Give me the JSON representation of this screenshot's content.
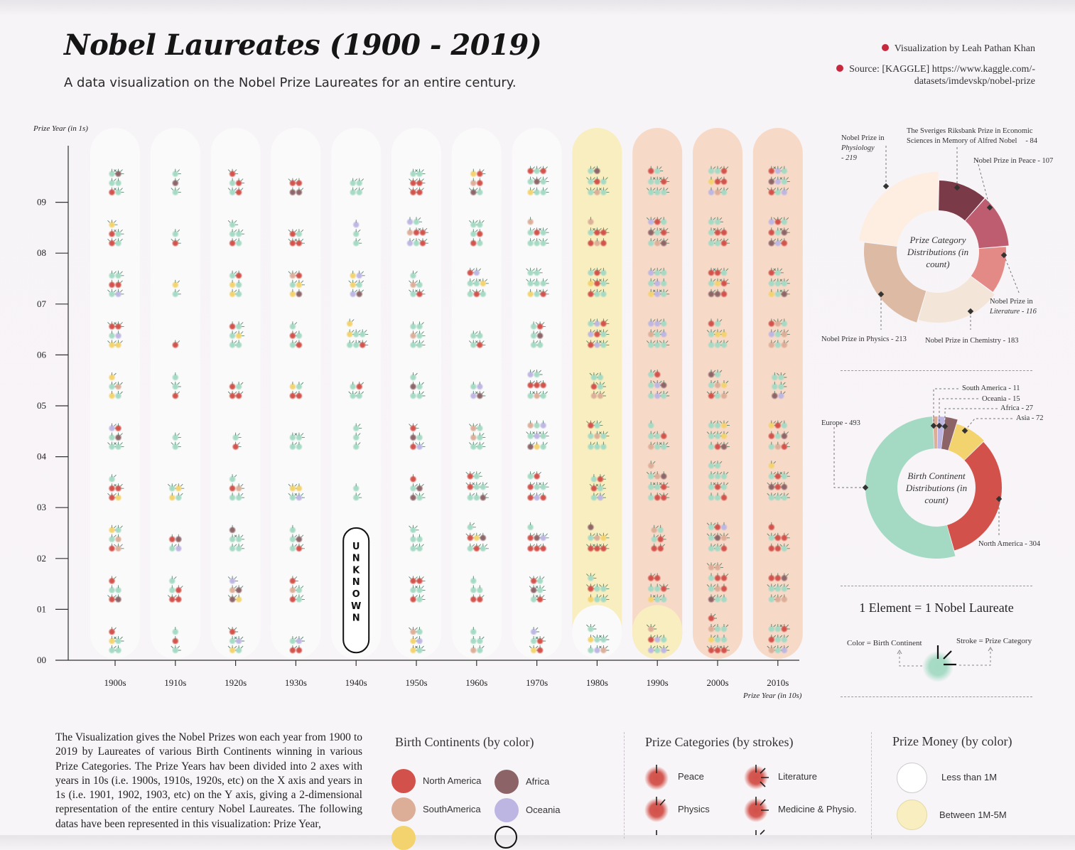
{
  "header": {
    "title": "Nobel Laureates (1900 - 2019)",
    "subtitle": "A data visualization on the Nobel Prize Laureates for an entire century.",
    "credit": "Visualization by Leah Pathan Khan",
    "source_line1": "Source: [KAGGLE] https://www.kaggle.com/-",
    "source_line2": "datasets/imdevskp/nobel-prize"
  },
  "colors": {
    "north_america": "#d2514a",
    "south_america": "#dcae98",
    "asia": "#f3d36e",
    "africa": "#8c6467",
    "oceania": "#bdb6e3",
    "europe": "#a4dac4",
    "money_lt1m": "#ffffff",
    "money_1m_5m": "#f8eec0",
    "money_gt5m": "#f6d8c6",
    "peace": "#7a3a48",
    "literature": "#bf5d70",
    "medicine": "#e48a86",
    "chemistry": "#f4e5d9",
    "physics": "#dcbaa4",
    "economics": "#fdeee1"
  },
  "chart_data": [
    {
      "type": "scatter",
      "title": "",
      "xlabel": "Prize Year (in 10s)",
      "ylabel": "Prize Year (in 1s)",
      "x_categories": [
        "1900s",
        "1910s",
        "1920s",
        "1930s",
        "1940s",
        "1950s",
        "1960s",
        "1970s",
        "1980s",
        "1990s",
        "2000s",
        "2010s"
      ],
      "y_ticks": [
        "00",
        "01",
        "02",
        "03",
        "04",
        "05",
        "06",
        "07",
        "08",
        "09"
      ],
      "grid": false,
      "unknown_label": "UNKNOWN",
      "unknown_years": [
        "1940",
        "1941",
        "1942"
      ],
      "decade_money_band": [
        "lt1m",
        "lt1m",
        "lt1m",
        "lt1m",
        "lt1m",
        "lt1m",
        "lt1m",
        "lt1m",
        "1m_5m",
        "gt5m",
        "gt5m",
        "gt5m"
      ],
      "note": "",
      "laureates_per_year": [
        [
          5,
          5,
          6,
          5,
          6,
          5,
          6,
          6,
          5,
          6
        ],
        [
          3,
          5,
          4,
          4,
          2,
          3,
          1,
          2,
          2,
          3
        ],
        [
          5,
          5,
          5,
          5,
          2,
          4,
          6,
          6,
          5,
          5
        ],
        [
          4,
          5,
          5,
          4,
          4,
          4,
          5,
          6,
          4,
          4
        ],
        [
          0,
          0,
          0,
          2,
          3,
          4,
          7,
          6,
          3,
          4
        ],
        [
          6,
          6,
          5,
          5,
          5,
          5,
          6,
          5,
          8,
          6
        ],
        [
          5,
          5,
          7,
          8,
          6,
          4,
          4,
          8,
          6,
          6
        ],
        [
          5,
          6,
          7,
          8,
          9,
          8,
          6,
          8,
          7,
          9
        ],
        [
          7,
          7,
          7,
          6,
          8,
          6,
          9,
          9,
          7,
          8
        ],
        [
          7,
          8,
          6,
          10,
          7,
          8,
          9,
          9,
          9,
          8
        ],
        [
          10,
          11,
          9,
          11,
          9,
          8,
          8,
          9,
          8,
          9
        ],
        [
          9,
          9,
          7,
          10,
          9,
          6,
          9,
          8,
          9,
          9
        ]
      ]
    },
    {
      "type": "pie",
      "title": "Prize Category Distributions (in count)",
      "categories": [
        "Nobel Prize in Peace",
        "Nobel Prize in Literature",
        "Nobel Prize in Chemistry",
        "Nobel Prize in Physics",
        "Nobel Prize in Physiology",
        "The Sveriges Riksbank Prize in Economic Sciences in Memory of Alfred Nobel"
      ],
      "values": [
        107,
        116,
        183,
        213,
        219,
        84
      ],
      "labels": [
        "Nobel Prize in Peace - 107",
        "Nobel Prize in Literature - 116",
        "Nobel Prize in Chemistry - 183",
        "Nobel Prize in Physics - 213",
        "Nobel Prize in Physiology - 219",
        "The Sveriges Riksbank Prize in Economic Sciences in Memory of Alfred Nobel - 84"
      ]
    },
    {
      "type": "pie",
      "title": "Birth Continent Distributions (in count)",
      "categories": [
        "North America",
        "Europe",
        "South America",
        "Oceania",
        "Africa",
        "Asia"
      ],
      "values": [
        304,
        493,
        11,
        15,
        27,
        72
      ],
      "labels": [
        "North America - 304",
        "Europe - 493",
        "South America - 11",
        "Oceania - 15",
        "Africa - 27",
        "Asia - 72"
      ]
    }
  ],
  "legend_note": {
    "headline": "1 Element = 1 Nobel Laureate",
    "color_label": "Color = Birth Continent",
    "stroke_label": "Stroke = Prize Category"
  },
  "paragraph": "The Visualization gives the Nobel Prizes won each year from 1900 to 2019 by Laureates of various Birth Continents winning in various Prize Categories. The Prize Years hav been divided into 2 axes with years in 10s (i.e. 1900s, 1910s, 1920s, etc) on the X axis and years in 1s (i.e. 1901, 1902, 1903, etc) on the Y axis, giving a 2-dimensional representation of the entire century Nobel Laureates. The following datas have been represented in this visualization: Prize Year,",
  "legends": {
    "continents_title": "Birth Continents (by color)",
    "continents": [
      {
        "label": "North America",
        "color": "#d2514a"
      },
      {
        "label": "Africa",
        "color": "#8c6467"
      },
      {
        "label": "SouthAmerica",
        "color": "#dcae98"
      },
      {
        "label": "Oceania",
        "color": "#bdb6e3"
      }
    ],
    "categories_title": "Prize Categories (by strokes)",
    "categories": [
      {
        "label": "Peace"
      },
      {
        "label": "Literature"
      },
      {
        "label": "Physics"
      },
      {
        "label": "Medicine & Physio."
      }
    ],
    "money_title": "Prize Money (by color)",
    "money": [
      {
        "label": "Less than 1M",
        "color": "#ffffff"
      },
      {
        "label": "Between 1M-5M",
        "color": "#f8eec0"
      }
    ]
  }
}
